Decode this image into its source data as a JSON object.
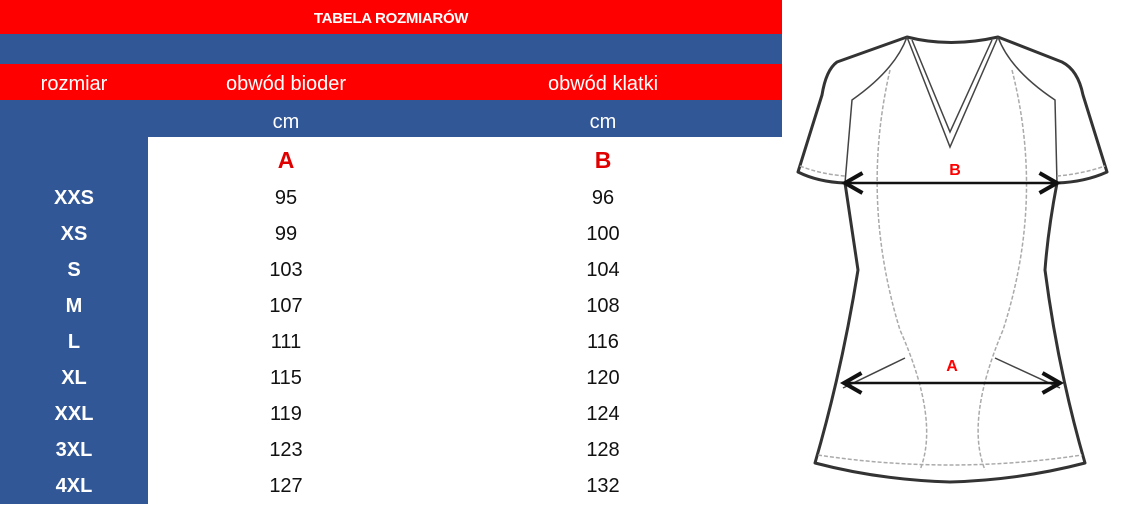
{
  "title": "TABELA ROZMIARÓW",
  "headers": {
    "size": "rozmiar",
    "hips": "obwód bioder",
    "chest": "obwód klatki"
  },
  "units": {
    "hips": "cm",
    "chest": "cm"
  },
  "letters": {
    "hips": "A",
    "chest": "B"
  },
  "rows": [
    {
      "size": "XXS",
      "hips": "95",
      "chest": "96"
    },
    {
      "size": "XS",
      "hips": "99",
      "chest": "100"
    },
    {
      "size": "S",
      "hips": "103",
      "chest": "104"
    },
    {
      "size": "M",
      "hips": "107",
      "chest": "108"
    },
    {
      "size": "L",
      "hips": "111",
      "chest": "116"
    },
    {
      "size": "XL",
      "hips": "115",
      "chest": "120"
    },
    {
      "size": "XXL",
      "hips": "119",
      "chest": "124"
    },
    {
      "size": "3XL",
      "hips": "123",
      "chest": "128"
    },
    {
      "size": "4XL",
      "hips": "127",
      "chest": "132"
    }
  ],
  "diagram": {
    "label_chest": "B",
    "label_hips": "A"
  },
  "colors": {
    "red": "#ff0000",
    "blue": "#325797"
  }
}
